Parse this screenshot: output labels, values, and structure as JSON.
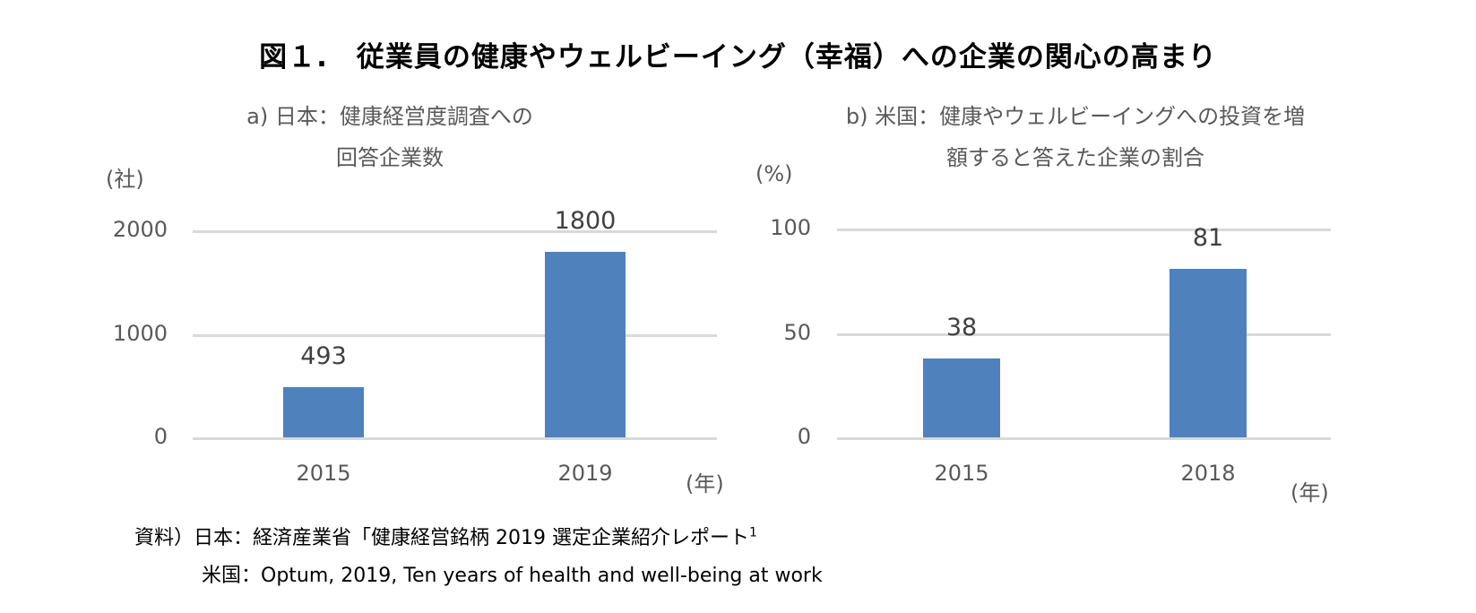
{
  "figure": {
    "title": "図１.　従業員の健康やウェルビーイング（幸福）への企業の関心の高まり"
  },
  "chart_data": [
    {
      "type": "bar",
      "title_lines": [
        "a) 日本：健康経営度調査への",
        "回答企業数"
      ],
      "unit_label": "(社)",
      "xunit_label": "(年)",
      "categories": [
        "2015",
        "2019"
      ],
      "values": [
        493,
        1800
      ],
      "value_labels": [
        "493",
        "1800"
      ],
      "ylim": [
        0,
        2000
      ],
      "yticks": [
        0,
        1000,
        2000
      ],
      "ytick_labels": [
        "0",
        "1000",
        "2000"
      ],
      "grid": true,
      "color": "#4f81bd"
    },
    {
      "type": "bar",
      "title_lines": [
        "b) 米国：健康やウェルビーイングへの投資を増",
        "額すると答えた企業の割合"
      ],
      "unit_label": "(%)",
      "xunit_label": "(年)",
      "categories": [
        "2015",
        "2018"
      ],
      "values": [
        38,
        81
      ],
      "value_labels": [
        "38",
        "81"
      ],
      "ylim": [
        0,
        100
      ],
      "yticks": [
        0,
        50,
        100
      ],
      "ytick_labels": [
        "0",
        "50",
        "100"
      ],
      "grid": true,
      "color": "#4f81bd"
    }
  ],
  "source": {
    "line1": "資料）日本：経済産業省「健康経営銘柄 2019 選定企業紹介レポート",
    "line1_sup": "1",
    "line2": "米国：Optum, 2019, Ten years of health and well-being at work"
  }
}
